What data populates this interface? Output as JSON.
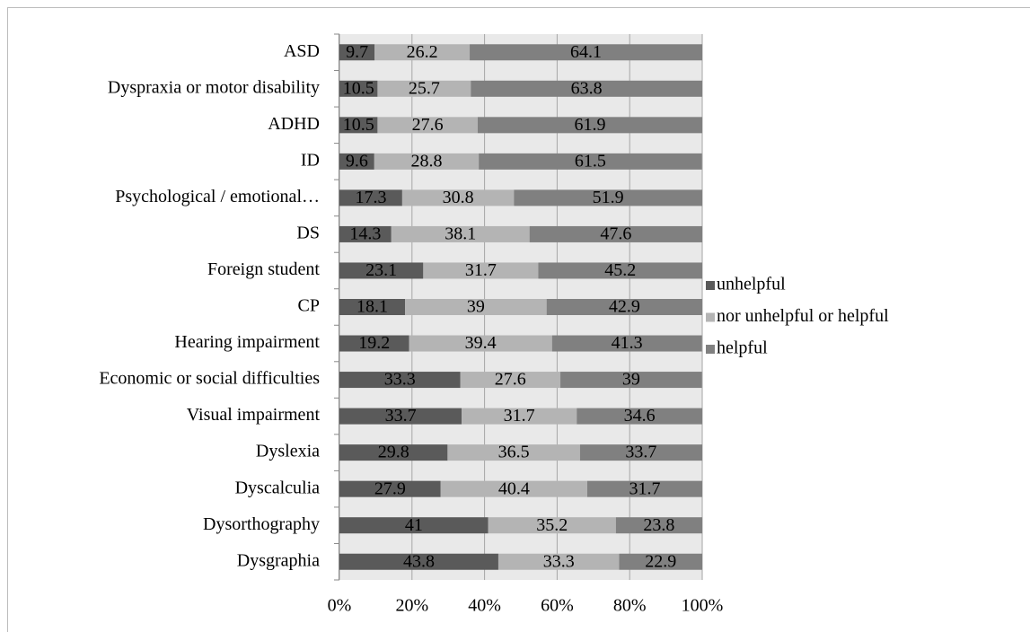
{
  "chart_data": {
    "type": "bar",
    "orientation": "horizontal",
    "stacked": true,
    "categories": [
      "ASD",
      "Dyspraxia or motor disability",
      "ADHD",
      "ID",
      "Psychological / emotional…",
      "DS",
      "Foreign student",
      "CP",
      "Hearing impairment",
      "Economic or social difficulties",
      "Visual impairment",
      "Dyslexia",
      "Dyscalculia",
      "Dysorthography",
      "Dysgraphia"
    ],
    "series": [
      {
        "name": "unhelpful",
        "color": "#5a5a5a",
        "values": [
          9.7,
          10.5,
          10.5,
          9.6,
          17.3,
          14.3,
          23.1,
          18.1,
          19.2,
          33.3,
          33.7,
          29.8,
          27.9,
          41,
          43.8
        ]
      },
      {
        "name": "nor unhelpful or helpful",
        "color": "#b4b4b4",
        "values": [
          26.2,
          25.7,
          27.6,
          28.8,
          30.8,
          38.1,
          31.7,
          39,
          39.4,
          27.6,
          31.7,
          36.5,
          40.4,
          35.2,
          33.3
        ]
      },
      {
        "name": "helpful",
        "color": "#808080",
        "values": [
          64.1,
          63.8,
          61.9,
          61.5,
          51.9,
          47.6,
          45.2,
          42.9,
          41.3,
          39,
          34.6,
          33.7,
          31.7,
          23.8,
          22.9
        ]
      }
    ],
    "xlim": [
      0,
      100
    ],
    "xticks": [
      {
        "value": 0,
        "label": "0%"
      },
      {
        "value": 20,
        "label": "20%"
      },
      {
        "value": 40,
        "label": "40%"
      },
      {
        "value": 60,
        "label": "60%"
      },
      {
        "value": 80,
        "label": "80%"
      },
      {
        "value": 100,
        "label": "100%"
      }
    ],
    "grid": true,
    "legend": "right"
  }
}
